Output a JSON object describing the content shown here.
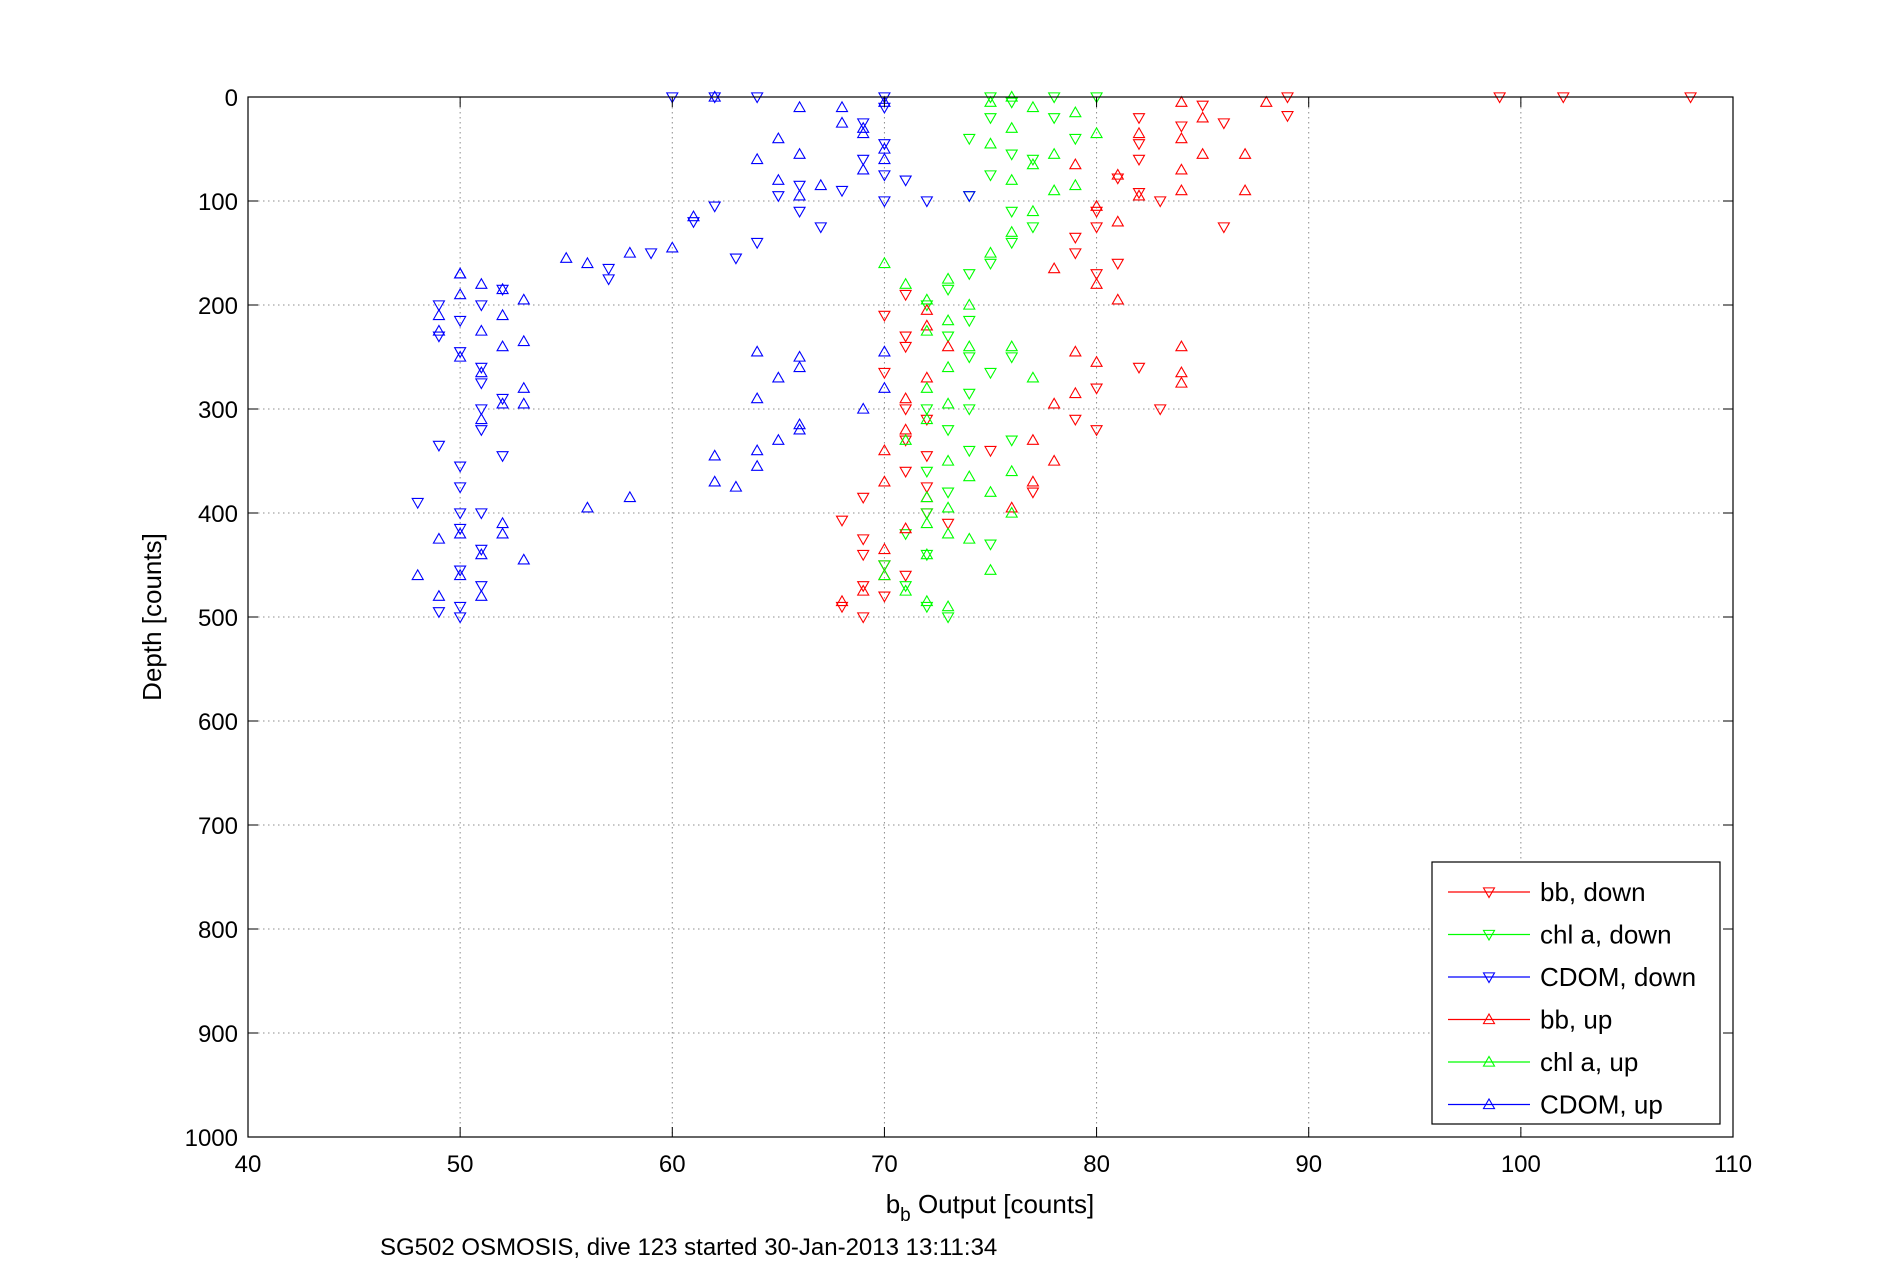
{
  "chart_data": {
    "type": "scatter",
    "title": "",
    "xlabel_main": "b",
    "xlabel_sub": "b",
    "xlabel_rest": " Output [counts]",
    "ylabel": "Depth [counts]",
    "caption": "SG502 OSMOSIS, dive 123 started 30-Jan-2013 13:11:34",
    "xlim": [
      40,
      110
    ],
    "ylim": [
      0,
      1000
    ],
    "y_reversed": true,
    "x_ticks": [
      40,
      50,
      60,
      70,
      80,
      90,
      100,
      110
    ],
    "y_ticks": [
      0,
      100,
      200,
      300,
      400,
      500,
      600,
      700,
      800,
      900,
      1000
    ],
    "grid": true,
    "legend_position": "bottom-right",
    "series": [
      {
        "name": "bb, down",
        "color": "#ff0000",
        "marker": "triangle-down",
        "points": [
          [
            99,
            0
          ],
          [
            102,
            0
          ],
          [
            108,
            0
          ],
          [
            89,
            0
          ],
          [
            89,
            18
          ],
          [
            85,
            8
          ],
          [
            84,
            28
          ],
          [
            82,
            45
          ],
          [
            82,
            60
          ],
          [
            81,
            78
          ],
          [
            82,
            92
          ],
          [
            80,
            110
          ],
          [
            80,
            125
          ],
          [
            79,
            135
          ],
          [
            79,
            150
          ],
          [
            81,
            160
          ],
          [
            83,
            100
          ],
          [
            86,
            125
          ],
          [
            80,
            170
          ],
          [
            71,
            190
          ],
          [
            70,
            210
          ],
          [
            71,
            230
          ],
          [
            71,
            240
          ],
          [
            70,
            265
          ],
          [
            71,
            300
          ],
          [
            72,
            310
          ],
          [
            71,
            330
          ],
          [
            72,
            345
          ],
          [
            71,
            360
          ],
          [
            72,
            375
          ],
          [
            69,
            385
          ],
          [
            68,
            407
          ],
          [
            69,
            425
          ],
          [
            69,
            440
          ],
          [
            70,
            450
          ],
          [
            71,
            460
          ],
          [
            69,
            470
          ],
          [
            70,
            480
          ],
          [
            68,
            490
          ],
          [
            69,
            500
          ],
          [
            72,
            400
          ],
          [
            73,
            410
          ],
          [
            75,
            340
          ],
          [
            77,
            380
          ],
          [
            79,
            310
          ],
          [
            80,
            320
          ],
          [
            83,
            300
          ],
          [
            82,
            260
          ],
          [
            80,
            280
          ],
          [
            82,
            20
          ],
          [
            86,
            25
          ]
        ]
      },
      {
        "name": "chl a, down",
        "color": "#00ff00",
        "marker": "triangle-down",
        "points": [
          [
            75,
            0
          ],
          [
            76,
            5
          ],
          [
            78,
            0
          ],
          [
            80,
            0
          ],
          [
            75,
            20
          ],
          [
            74,
            40
          ],
          [
            76,
            55
          ],
          [
            75,
            75
          ],
          [
            74,
            95
          ],
          [
            76,
            110
          ],
          [
            77,
            125
          ],
          [
            76,
            140
          ],
          [
            75,
            160
          ],
          [
            74,
            170
          ],
          [
            73,
            185
          ],
          [
            72,
            200
          ],
          [
            74,
            215
          ],
          [
            73,
            230
          ],
          [
            74,
            250
          ],
          [
            75,
            265
          ],
          [
            74,
            285
          ],
          [
            72,
            300
          ],
          [
            73,
            320
          ],
          [
            74,
            340
          ],
          [
            72,
            360
          ],
          [
            73,
            380
          ],
          [
            72,
            400
          ],
          [
            71,
            420
          ],
          [
            72,
            440
          ],
          [
            70,
            450
          ],
          [
            71,
            470
          ],
          [
            72,
            490
          ],
          [
            73,
            500
          ],
          [
            75,
            430
          ],
          [
            76,
            330
          ],
          [
            74,
            300
          ],
          [
            76,
            250
          ],
          [
            78,
            20
          ],
          [
            79,
            40
          ],
          [
            77,
            60
          ]
        ]
      },
      {
        "name": "CDOM, down",
        "color": "#0000ff",
        "marker": "triangle-down",
        "points": [
          [
            60,
            0
          ],
          [
            62,
            0
          ],
          [
            64,
            0
          ],
          [
            70,
            0
          ],
          [
            70,
            10
          ],
          [
            69,
            25
          ],
          [
            70,
            45
          ],
          [
            69,
            60
          ],
          [
            70,
            75
          ],
          [
            68,
            90
          ],
          [
            70,
            100
          ],
          [
            66,
            110
          ],
          [
            67,
            125
          ],
          [
            64,
            140
          ],
          [
            62,
            105
          ],
          [
            61,
            120
          ],
          [
            63,
            155
          ],
          [
            59,
            150
          ],
          [
            57,
            165
          ],
          [
            57,
            175
          ],
          [
            52,
            185
          ],
          [
            51,
            200
          ],
          [
            50,
            215
          ],
          [
            49,
            230
          ],
          [
            50,
            245
          ],
          [
            51,
            260
          ],
          [
            51,
            275
          ],
          [
            52,
            290
          ],
          [
            51,
            300
          ],
          [
            51,
            320
          ],
          [
            52,
            345
          ],
          [
            49,
            335
          ],
          [
            50,
            355
          ],
          [
            50,
            375
          ],
          [
            50,
            400
          ],
          [
            48,
            390
          ],
          [
            51,
            400
          ],
          [
            50,
            415
          ],
          [
            51,
            435
          ],
          [
            50,
            455
          ],
          [
            51,
            470
          ],
          [
            50,
            490
          ],
          [
            49,
            495
          ],
          [
            50,
            500
          ],
          [
            49,
            200
          ],
          [
            72,
            100
          ],
          [
            74,
            95
          ],
          [
            71,
            80
          ],
          [
            65,
            95
          ],
          [
            66,
            85
          ]
        ]
      },
      {
        "name": "bb, up",
        "color": "#ff0000",
        "marker": "triangle-up",
        "points": [
          [
            88,
            5
          ],
          [
            84,
            5
          ],
          [
            85,
            20
          ],
          [
            84,
            40
          ],
          [
            85,
            55
          ],
          [
            84,
            70
          ],
          [
            84,
            90
          ],
          [
            82,
            95
          ],
          [
            81,
            75
          ],
          [
            79,
            65
          ],
          [
            80,
            105
          ],
          [
            78,
            165
          ],
          [
            80,
            180
          ],
          [
            81,
            195
          ],
          [
            79,
            245
          ],
          [
            80,
            255
          ],
          [
            78,
            295
          ],
          [
            79,
            285
          ],
          [
            77,
            330
          ],
          [
            78,
            350
          ],
          [
            77,
            370
          ],
          [
            76,
            395
          ],
          [
            84,
            240
          ],
          [
            84,
            265
          ],
          [
            84,
            275
          ],
          [
            72,
            205
          ],
          [
            72,
            220
          ],
          [
            73,
            240
          ],
          [
            72,
            270
          ],
          [
            71,
            290
          ],
          [
            71,
            320
          ],
          [
            70,
            340
          ],
          [
            70,
            370
          ],
          [
            72,
            385
          ],
          [
            71,
            415
          ],
          [
            70,
            435
          ],
          [
            70,
            460
          ],
          [
            69,
            475
          ],
          [
            68,
            485
          ],
          [
            87,
            55
          ],
          [
            87,
            90
          ],
          [
            82,
            35
          ],
          [
            81,
            120
          ]
        ]
      },
      {
        "name": "chl a, up",
        "color": "#00ff00",
        "marker": "triangle-up",
        "points": [
          [
            75,
            5
          ],
          [
            76,
            0
          ],
          [
            77,
            10
          ],
          [
            76,
            30
          ],
          [
            75,
            45
          ],
          [
            77,
            65
          ],
          [
            76,
            80
          ],
          [
            78,
            90
          ],
          [
            79,
            85
          ],
          [
            77,
            110
          ],
          [
            76,
            130
          ],
          [
            75,
            150
          ],
          [
            70,
            160
          ],
          [
            71,
            180
          ],
          [
            72,
            195
          ],
          [
            73,
            215
          ],
          [
            72,
            225
          ],
          [
            74,
            240
          ],
          [
            73,
            260
          ],
          [
            72,
            280
          ],
          [
            73,
            295
          ],
          [
            72,
            310
          ],
          [
            71,
            330
          ],
          [
            73,
            350
          ],
          [
            74,
            365
          ],
          [
            72,
            385
          ],
          [
            73,
            395
          ],
          [
            72,
            410
          ],
          [
            73,
            420
          ],
          [
            74,
            425
          ],
          [
            72,
            440
          ],
          [
            70,
            460
          ],
          [
            71,
            475
          ],
          [
            72,
            485
          ],
          [
            73,
            490
          ],
          [
            75,
            455
          ],
          [
            76,
            400
          ],
          [
            75,
            380
          ],
          [
            76,
            360
          ],
          [
            77,
            270
          ],
          [
            76,
            240
          ],
          [
            74,
            200
          ],
          [
            73,
            175
          ],
          [
            79,
            15
          ],
          [
            80,
            35
          ],
          [
            78,
            55
          ]
        ]
      },
      {
        "name": "CDOM, up",
        "color": "#0000ff",
        "marker": "triangle-up",
        "points": [
          [
            70,
            5
          ],
          [
            68,
            10
          ],
          [
            69,
            30
          ],
          [
            70,
            50
          ],
          [
            69,
            70
          ],
          [
            67,
            85
          ],
          [
            66,
            95
          ],
          [
            65,
            80
          ],
          [
            64,
            60
          ],
          [
            65,
            40
          ],
          [
            66,
            55
          ],
          [
            68,
            25
          ],
          [
            66,
            10
          ],
          [
            62,
            0
          ],
          [
            61,
            115
          ],
          [
            60,
            145
          ],
          [
            58,
            150
          ],
          [
            56,
            160
          ],
          [
            55,
            155
          ],
          [
            50,
            170
          ],
          [
            51,
            180
          ],
          [
            52,
            185
          ],
          [
            53,
            195
          ],
          [
            52,
            210
          ],
          [
            51,
            225
          ],
          [
            53,
            235
          ],
          [
            52,
            240
          ],
          [
            50,
            250
          ],
          [
            51,
            265
          ],
          [
            53,
            280
          ],
          [
            52,
            295
          ],
          [
            51,
            310
          ],
          [
            66,
            250
          ],
          [
            64,
            245
          ],
          [
            66,
            260
          ],
          [
            65,
            270
          ],
          [
            64,
            290
          ],
          [
            66,
            315
          ],
          [
            65,
            330
          ],
          [
            64,
            340
          ],
          [
            62,
            345
          ],
          [
            63,
            375
          ],
          [
            62,
            370
          ],
          [
            64,
            355
          ],
          [
            66,
            320
          ],
          [
            70,
            245
          ],
          [
            70,
            280
          ],
          [
            69,
            300
          ],
          [
            50,
            170
          ],
          [
            50,
            190
          ],
          [
            49,
            210
          ],
          [
            49,
            225
          ],
          [
            58,
            385
          ],
          [
            56,
            395
          ],
          [
            52,
            410
          ],
          [
            53,
            445
          ],
          [
            51,
            440
          ],
          [
            50,
            460
          ],
          [
            51,
            480
          ],
          [
            49,
            480
          ],
          [
            50,
            420
          ],
          [
            49,
            425
          ],
          [
            48,
            460
          ],
          [
            52,
            420
          ],
          [
            53,
            295
          ],
          [
            69,
            35
          ],
          [
            70,
            60
          ]
        ]
      }
    ]
  }
}
